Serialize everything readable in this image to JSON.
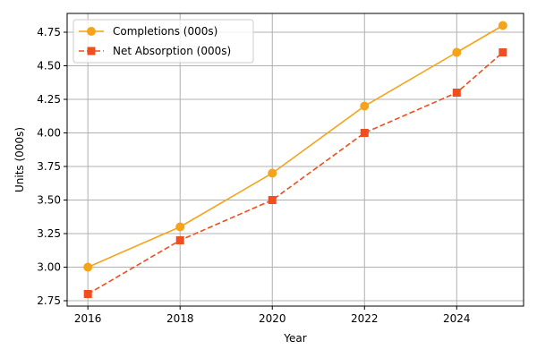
{
  "chart_data": {
    "type": "line",
    "title": "",
    "xlabel": "Year",
    "ylabel": "Units (000s)",
    "x": [
      2016,
      2018,
      2020,
      2022,
      2024,
      2025
    ],
    "xticks": [
      2016,
      2018,
      2020,
      2022,
      2024
    ],
    "yticks": [
      2.75,
      3.0,
      3.25,
      3.5,
      3.75,
      4.0,
      4.25,
      4.5,
      4.75
    ],
    "xlim": [
      2015.55,
      2025.45
    ],
    "ylim": [
      2.71,
      4.89
    ],
    "grid": true,
    "legend": "top-left",
    "series": [
      {
        "name": "Completions (000s)",
        "values": [
          3.0,
          3.3,
          3.7,
          4.2,
          4.6,
          4.8
        ],
        "color": "#f5a31a",
        "marker": "circle",
        "linestyle": "solid"
      },
      {
        "name": "Net Absorption (000s)",
        "values": [
          2.8,
          3.2,
          3.5,
          4.0,
          4.3,
          4.6
        ],
        "color": "#f04e1e",
        "marker": "square",
        "linestyle": "dashed"
      }
    ]
  }
}
